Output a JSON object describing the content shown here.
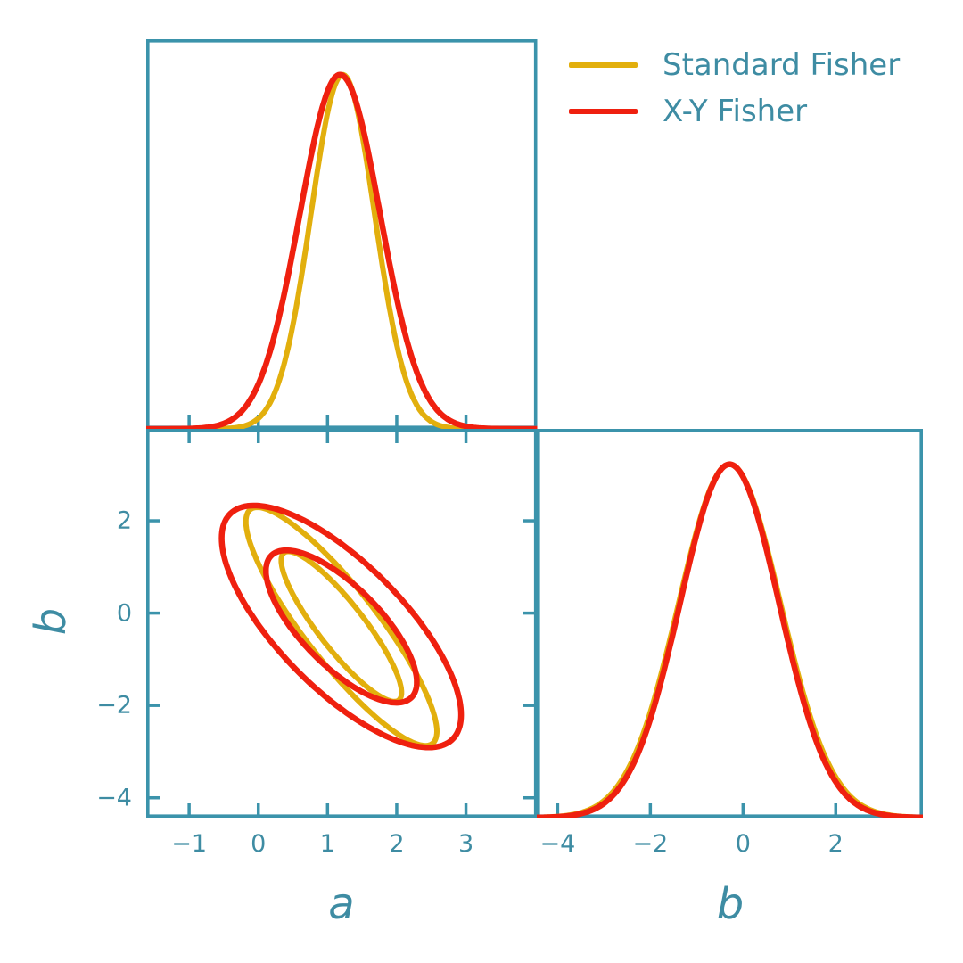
{
  "colors": {
    "axis": "#3B93AB",
    "text": "#3E8CA3",
    "standard_fisher": "#E2AF0D",
    "xy_fisher": "#EF200F",
    "background": "#FFFFFF"
  },
  "legend": {
    "items": [
      {
        "label": "Standard Fisher",
        "color": "standard_fisher"
      },
      {
        "label": "X-Y Fisher",
        "color": "xy_fisher"
      }
    ]
  },
  "chart_data": {
    "type": "line",
    "subtype": "corner-plot-fisher-forecast",
    "parameters": [
      "a",
      "b"
    ],
    "legend_entries": [
      "Standard Fisher",
      "X-Y Fisher"
    ],
    "panels": [
      {
        "id": "marginal-a",
        "kind": "1d-gaussian",
        "xlabel": "a",
        "xlim": [
          -1.62,
          4.03
        ],
        "ylim": [
          0,
          1.1
        ],
        "xticks": [
          {
            "value": -1,
            "label": "−1"
          },
          {
            "value": 0,
            "label": "0"
          },
          {
            "value": 1,
            "label": "1"
          },
          {
            "value": 2,
            "label": "2"
          },
          {
            "value": 3,
            "label": "3"
          }
        ],
        "series": [
          {
            "name": "Standard Fisher",
            "color": "standard_fisher",
            "mean": 1.22,
            "sigma": 0.46,
            "peak": 1.0
          },
          {
            "name": "X-Y Fisher",
            "color": "xy_fisher",
            "mean": 1.18,
            "sigma": 0.58,
            "peak": 1.0
          }
        ]
      },
      {
        "id": "joint-ab",
        "kind": "2d-confidence-ellipses",
        "xlabel": "a",
        "ylabel": "b",
        "xlim": [
          -1.62,
          4.03
        ],
        "ylim": [
          -4.43,
          3.99
        ],
        "xticks": [
          {
            "value": -1,
            "label": "−1"
          },
          {
            "value": 0,
            "label": "0"
          },
          {
            "value": 1,
            "label": "1"
          },
          {
            "value": 2,
            "label": "2"
          },
          {
            "value": 3,
            "label": "3"
          }
        ],
        "yticks": [
          {
            "value": 2,
            "label": "2"
          },
          {
            "value": 0,
            "label": "0"
          },
          {
            "value": -2,
            "label": "−2"
          },
          {
            "value": -4,
            "label": "−4"
          }
        ],
        "series": [
          {
            "name": "Standard Fisher",
            "color": "standard_fisher",
            "center": [
              1.2,
              -0.29
            ],
            "outer_half_width": 1.38,
            "outer_half_height": 2.58,
            "correlation": -0.88,
            "inner_scale": 0.63
          },
          {
            "name": "X-Y Fisher",
            "color": "xy_fisher",
            "center": [
              1.2,
              -0.29
            ],
            "outer_half_width": 1.73,
            "outer_half_height": 2.62,
            "correlation": -0.73,
            "inner_scale": 0.63
          }
        ]
      },
      {
        "id": "marginal-b",
        "kind": "1d-gaussian",
        "xlabel": "b",
        "xlim": [
          -4.45,
          3.88
        ],
        "ylim": [
          0,
          1.1
        ],
        "xticks": [
          {
            "value": -4,
            "label": "−4"
          },
          {
            "value": -2,
            "label": "−2"
          },
          {
            "value": 0,
            "label": "0"
          },
          {
            "value": 2,
            "label": "2"
          }
        ],
        "series": [
          {
            "name": "Standard Fisher",
            "color": "standard_fisher",
            "mean": -0.29,
            "sigma": 1.1,
            "peak": 1.0
          },
          {
            "name": "X-Y Fisher",
            "color": "xy_fisher",
            "mean": -0.29,
            "sigma": 1.07,
            "peak": 1.0
          }
        ]
      }
    ]
  }
}
